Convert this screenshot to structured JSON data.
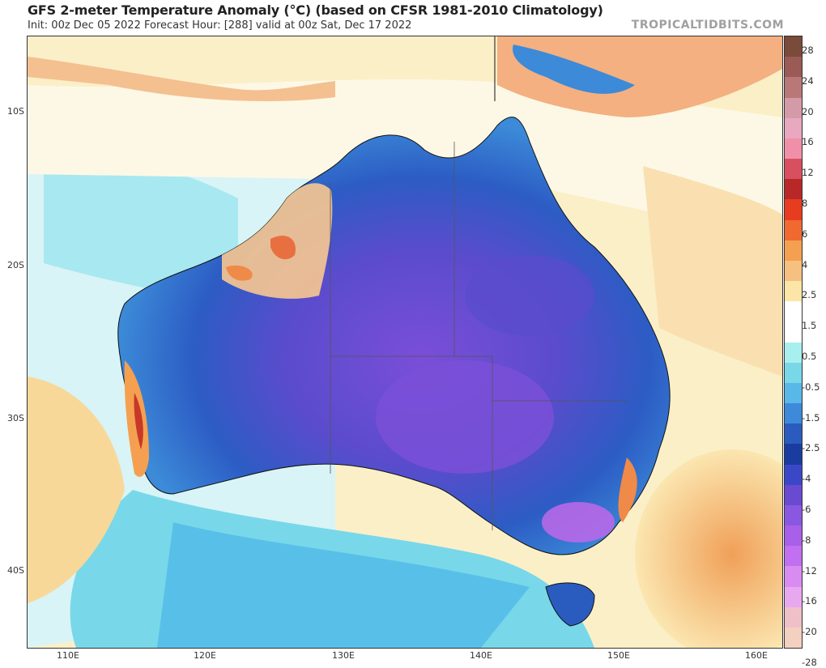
{
  "header": {
    "title": "GFS 2-meter Temperature Anomaly (°C) (based on CFSR 1981-2010 Climatology)",
    "subtitle": "Init: 00z Dec 05 2022   Forecast Hour: [288]   valid at 00z Sat, Dec 17 2022",
    "brand": "TROPICALTIDBITS.COM"
  },
  "map": {
    "region": "Australia",
    "lat_labels": [
      "10S",
      "20S",
      "30S",
      "40S"
    ],
    "lon_labels": [
      "110E",
      "120E",
      "130E",
      "140E",
      "150E",
      "160E"
    ]
  },
  "colorbar": {
    "labels": [
      "28",
      "24",
      "20",
      "16",
      "12",
      "8",
      "6",
      "4",
      "2.5",
      "1.5",
      "0.5",
      "-0.5",
      "-1.5",
      "-2.5",
      "-4",
      "-6",
      "-8",
      "-12",
      "-16",
      "-20",
      "-28"
    ],
    "colors": [
      "#7a4a3a",
      "#9a5a55",
      "#b87878",
      "#d49aa8",
      "#e8a8c0",
      "#f090a8",
      "#d85060",
      "#b82828",
      "#e83c20",
      "#f06a30",
      "#f4a050",
      "#f6c080",
      "#fbe6a8",
      "#ffffff",
      "#ffffff",
      "#a8f0f0",
      "#78d8e8",
      "#58b8e8",
      "#3c8ad8",
      "#2a5cc0",
      "#1a3ca0",
      "#3a48c8",
      "#6a4ad0",
      "#8a58e0",
      "#a860e8",
      "#c070f0",
      "#d88cf0",
      "#e8a8f0",
      "#f0c0c8",
      "#f4d0c0"
    ]
  }
}
